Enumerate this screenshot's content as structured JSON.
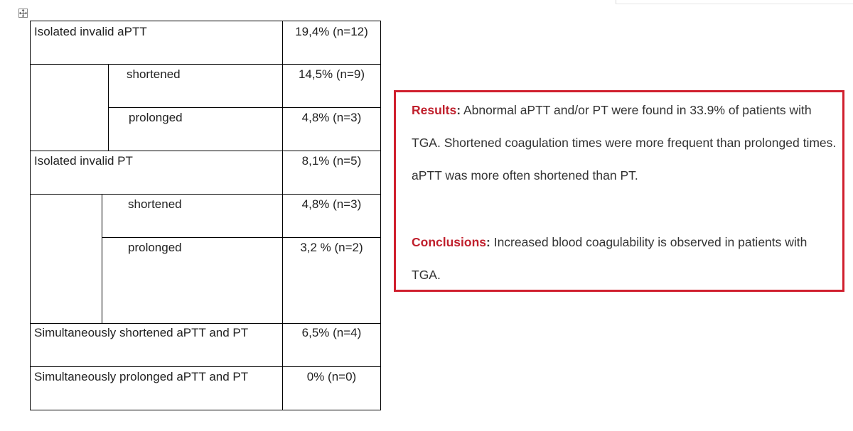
{
  "table": {
    "rows": [
      {
        "label": "Isolated invalid aPTT",
        "value": "19,4% (n=12)"
      },
      {
        "label": "shortened",
        "value": "14,5% (n=9)"
      },
      {
        "label": "prolonged",
        "value": "4,8% (n=3)"
      },
      {
        "label": "Isolated invalid PT",
        "value": "8,1% (n=5)"
      },
      {
        "label": "shortened",
        "value": "4,8% (n=3)"
      },
      {
        "label": "prolonged",
        "value": "3,2 % (n=2)"
      },
      {
        "label": "Simultaneously shortened aPTT and PT",
        "value": "6,5% (n=4)"
      },
      {
        "label": "Simultaneously prolonged aPTT and PT",
        "value": "0% (n=0)"
      }
    ]
  },
  "summary": {
    "results_label": "Results",
    "results_text": " Abnormal aPTT and/or PT were found in 33.9% of patients with TGA. Shortened coagulation times were more frequent than prolonged times. aPTT was more often shortened than PT.",
    "conclusions_label": "Conclusions",
    "conclusions_text": " Increased blood coagulability is observed in patients with TGA.",
    "colon": ":",
    "accent_color": "#d01f2e"
  }
}
